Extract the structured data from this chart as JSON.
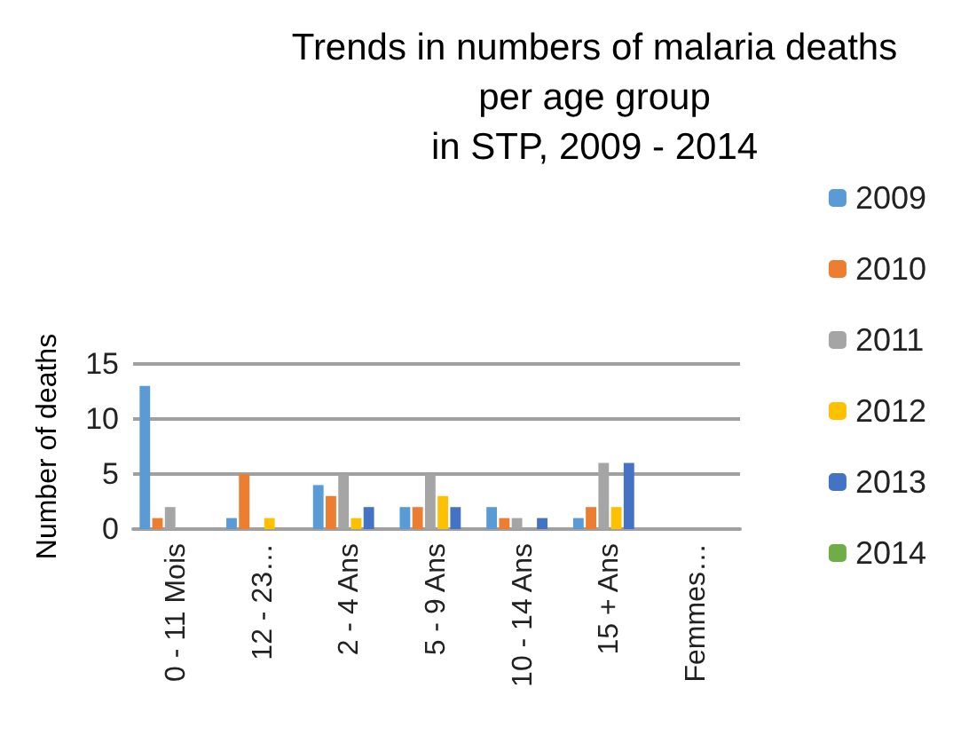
{
  "chart_data": {
    "type": "bar",
    "title": "Trends in numbers of malaria deaths\nper age group\nin STP, 2009 - 2014",
    "ylabel": "Number of deaths",
    "categories": [
      "0 - 11 Mois",
      "12 - 23…",
      "2 - 4 Ans",
      "5 - 9 Ans",
      "10 - 14 Ans",
      "15 + Ans",
      "Femmes…"
    ],
    "series": [
      {
        "name": "2009",
        "color": "#5b9bd5",
        "values": [
          13,
          1,
          4,
          2,
          2,
          1,
          0
        ]
      },
      {
        "name": "2010",
        "color": "#ed7d31",
        "values": [
          1,
          5,
          3,
          2,
          1,
          2,
          0
        ]
      },
      {
        "name": "2011",
        "color": "#a5a5a5",
        "values": [
          2,
          0,
          5,
          5,
          1,
          6,
          0
        ]
      },
      {
        "name": "2012",
        "color": "#ffc000",
        "values": [
          0,
          1,
          1,
          3,
          0,
          2,
          0
        ]
      },
      {
        "name": "2013",
        "color": "#4472c4",
        "values": [
          0,
          0,
          2,
          2,
          1,
          6,
          0
        ]
      },
      {
        "name": "2014",
        "color": "#70ad47",
        "values": [
          0,
          0,
          0,
          0,
          0,
          0,
          0
        ]
      }
    ],
    "ylim": [
      0,
      15
    ],
    "yticks": [
      0,
      5,
      10,
      15
    ],
    "grid": "y",
    "legend": "right"
  }
}
